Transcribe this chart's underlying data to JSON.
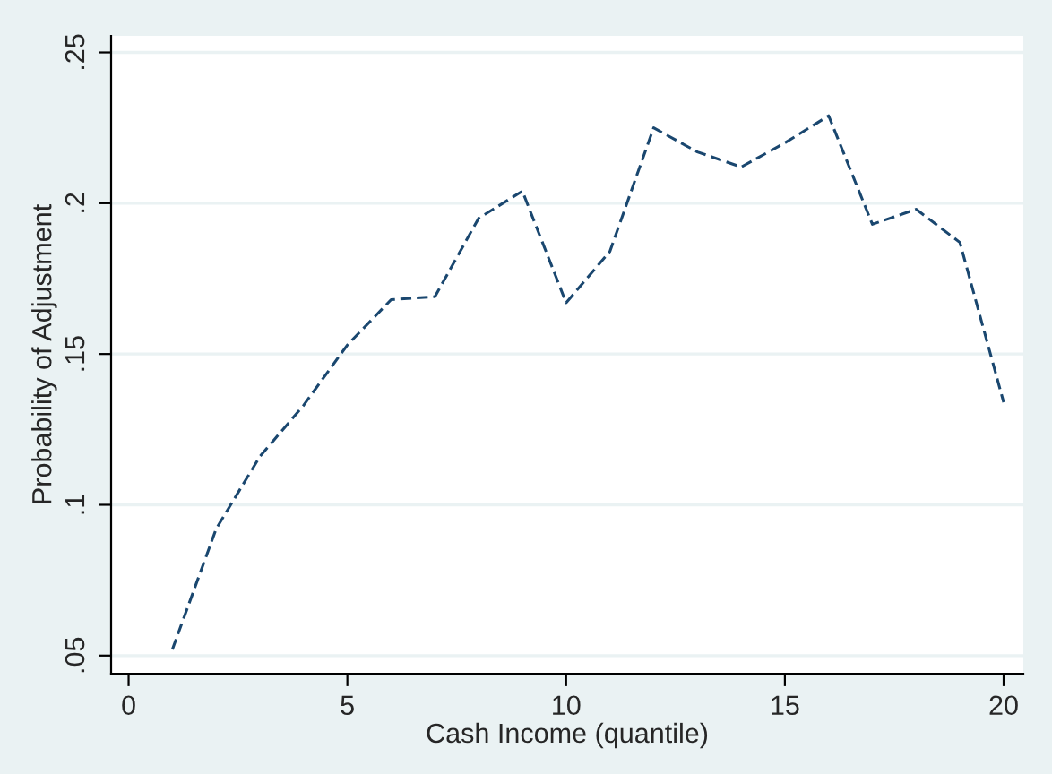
{
  "chart_data": {
    "type": "line",
    "xlabel": "Cash Income (quantile)",
    "ylabel": "Probability of Adjustment",
    "x": [
      1,
      2,
      3,
      4,
      5,
      6,
      7,
      8,
      9,
      10,
      11,
      12,
      13,
      14,
      15,
      16,
      17,
      18,
      19,
      20
    ],
    "series": [
      {
        "color": "#1a476f",
        "values": [
          0.052,
          0.092,
          0.116,
          0.133,
          0.153,
          0.168,
          0.169,
          0.195,
          0.204,
          0.167,
          0.184,
          0.225,
          0.217,
          0.212,
          0.22,
          0.229,
          0.193,
          0.198,
          0.187,
          0.134
        ]
      }
    ],
    "xlim": [
      -0.4,
      20.45
    ],
    "ylim": [
      0.044,
      0.2555
    ],
    "xticks": [
      0,
      5,
      10,
      15,
      20
    ],
    "yticks": [
      {
        "value": 0.05,
        "label": ".05"
      },
      {
        "value": 0.1,
        "label": ".1"
      },
      {
        "value": 0.15,
        "label": ".15"
      },
      {
        "value": 0.2,
        "label": ".2"
      },
      {
        "value": 0.25,
        "label": ".25"
      }
    ],
    "grid": "y",
    "line_style": "dashed",
    "marker": "none"
  }
}
